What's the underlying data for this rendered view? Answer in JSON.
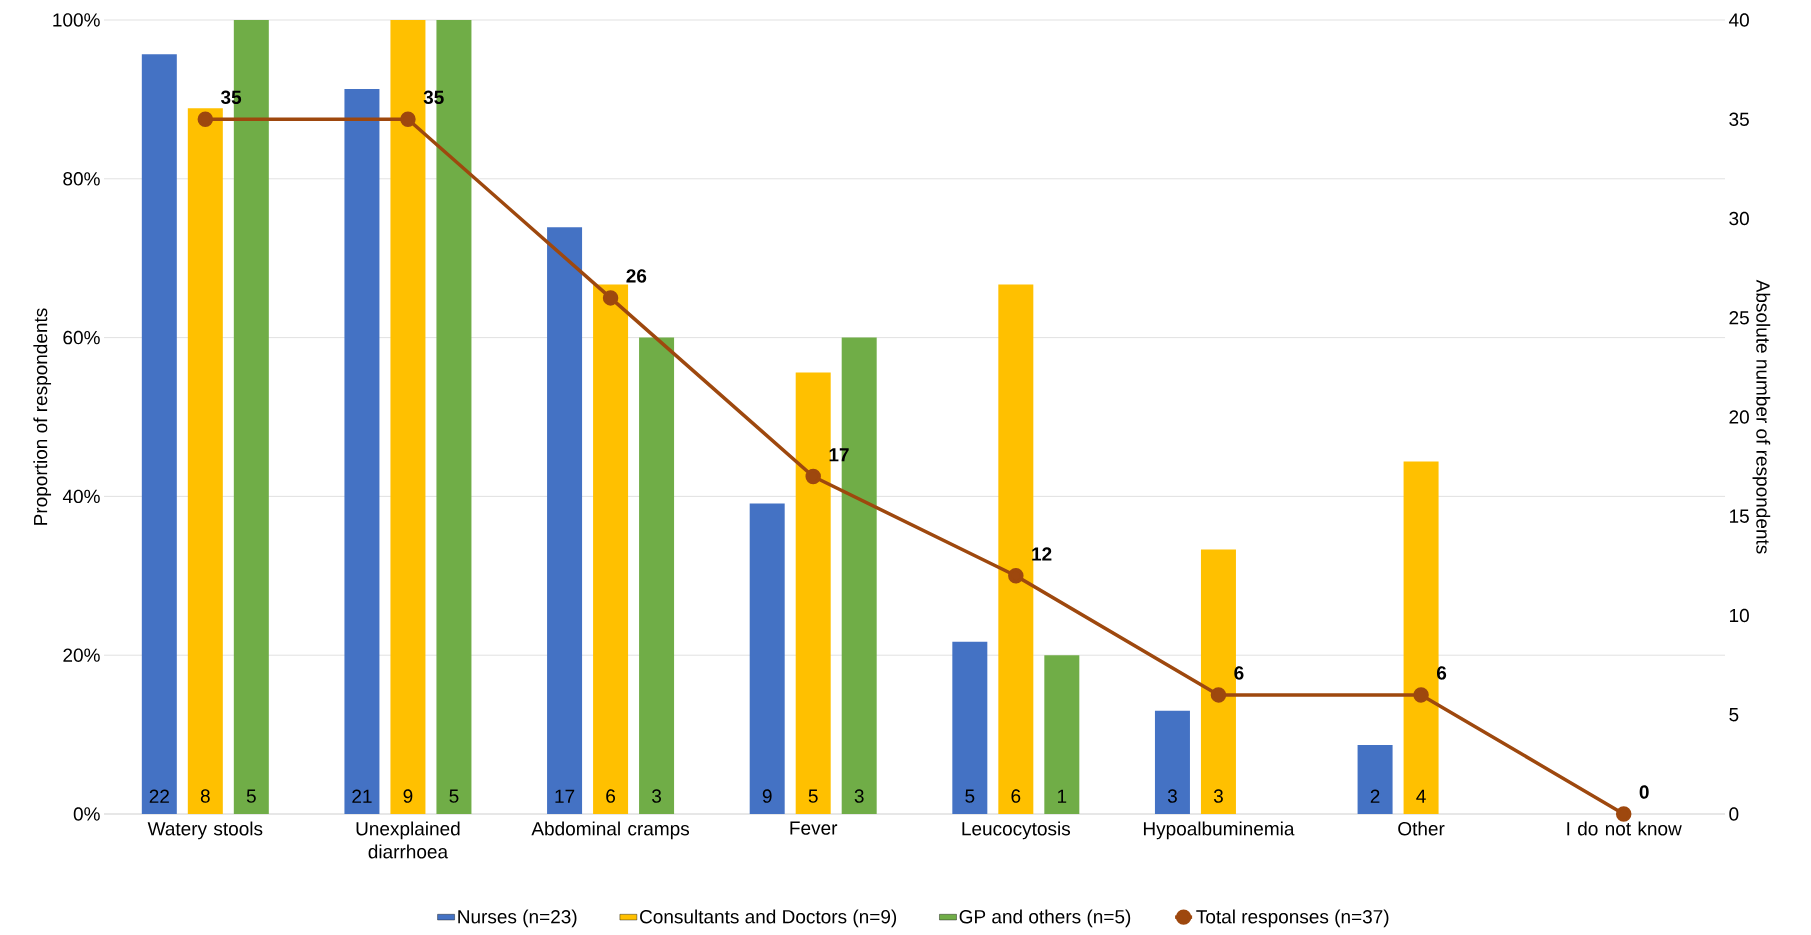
{
  "chart_data": {
    "type": "bar",
    "categories": [
      "Watery stools",
      "Unexplained diarrhoea",
      "Abdominal cramps",
      "Fever",
      "Leucocytosis",
      "Hypoalbuminemia",
      "Other",
      "I do not know"
    ],
    "series": [
      {
        "name": "Nurses (n=23)",
        "color": "#4472c4",
        "values": [
          95.7,
          91.3,
          73.9,
          39.1,
          21.7,
          13.0,
          8.7,
          null
        ]
      },
      {
        "name": "Consultants and Doctors (n=9)",
        "color": "#ffc000",
        "values": [
          88.9,
          100,
          66.7,
          55.6,
          66.7,
          33.3,
          44.4,
          null
        ]
      },
      {
        "name": "GP and others (n=5)",
        "color": "#70ad47",
        "values": [
          100,
          100,
          60,
          60,
          20,
          null,
          null,
          null
        ]
      },
      {
        "name": "Total responses (n=37)",
        "type": "line",
        "axis": "y2",
        "color": "#9e480e",
        "marker": "circle",
        "values": [
          35,
          35,
          26,
          17,
          12,
          6,
          6,
          0
        ],
        "value_labels": [
          "35",
          "35",
          "26",
          "17",
          "12",
          "6",
          "6",
          "0"
        ]
      }
    ],
    "annotations": [
      {
        "text": "22",
        "x": "Watery stools",
        "y": 0
      },
      {
        "text": "8",
        "x": "Watery stools",
        "y": 0
      },
      {
        "text": "5",
        "x": "Watery stools",
        "y": 0
      },
      {
        "text": "21",
        "x": "Unexplained diarrhoea",
        "y": 0
      },
      {
        "text": "9",
        "x": "Unexplained diarrhoea",
        "y": 0
      },
      {
        "text": "5",
        "x": "Unexplained diarrhoea",
        "y": 0
      },
      {
        "text": "17",
        "x": "Abdominal cramps",
        "y": 0
      },
      {
        "text": "6",
        "x": "Abdominal cramps",
        "y": 0
      },
      {
        "text": "3",
        "x": "Abdominal cramps",
        "y": 0
      },
      {
        "text": "9",
        "x": "Fever",
        "y": 0
      },
      {
        "text": "5",
        "x": "Fever",
        "y": 0
      },
      {
        "text": "3",
        "x": "Fever",
        "y": 0
      },
      {
        "text": "5",
        "x": "Leucocytosis",
        "y": 0
      },
      {
        "text": "6",
        "x": "Leucocytosis",
        "y": 0
      },
      {
        "text": "1",
        "x": "Leucocytosis",
        "y": 0
      },
      {
        "text": "3",
        "x": "Hypoalbuminemia",
        "y": 0
      },
      {
        "text": "3",
        "x": "Hypoalbuminemia",
        "y": 0
      },
      {
        "text": "2",
        "x": "Other",
        "y": 0
      },
      {
        "text": "4",
        "x": "Other",
        "y": 0
      }
    ],
    "ylabel": "Proportion of respondents",
    "y2label": "Absolute number of respondents",
    "ylim": [
      0,
      100
    ],
    "yticks": [
      {
        "value": 0,
        "label": "0%"
      },
      {
        "value": 20,
        "label": "20%"
      },
      {
        "value": 40,
        "label": "40%"
      },
      {
        "value": 60,
        "label": "60%"
      },
      {
        "value": 80,
        "label": "80%"
      },
      {
        "value": 100,
        "label": "100%"
      }
    ],
    "y2lim": [
      0,
      40
    ],
    "y2ticks": [
      0,
      5,
      10,
      15,
      20,
      25,
      30,
      35,
      40
    ],
    "grid": "y",
    "legend": "bottom"
  }
}
